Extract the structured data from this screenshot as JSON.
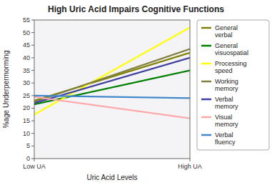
{
  "chart_data": {
    "type": "line",
    "title": "High Uric Acid Impairs Cognitive Functions",
    "x_label": "Uric Acid Levels",
    "y_label": "%age Underpermorming",
    "categories": [
      "Low UA",
      "High UA"
    ],
    "series": [
      {
        "name": "General\nverbal",
        "color": "#808000",
        "values": [
          23.0,
          42.0
        ]
      },
      {
        "name": "General\nvisuospatial",
        "color": "#008000",
        "values": [
          21.5,
          35.0
        ]
      },
      {
        "name": "Processing\nspeed",
        "color": "#ffff00",
        "values": [
          17.5,
          52.0
        ]
      },
      {
        "name": "Working\nmemory",
        "color": "#808040",
        "values": [
          22.5,
          43.5
        ]
      },
      {
        "name": "Verbal\nmemory",
        "color": "#4040a0",
        "values": [
          22.0,
          40.0
        ]
      },
      {
        "name": "Visual\nmemory",
        "color": "#ffaaaa",
        "values": [
          24.5,
          16.0
        ]
      },
      {
        "name": "Verbal\nfluency",
        "color": "#4488cc",
        "values": [
          25.0,
          24.0
        ]
      }
    ],
    "ylim": [
      0,
      55
    ],
    "yticks": [
      0,
      5,
      10,
      15,
      20,
      25,
      30,
      35,
      40,
      45,
      50,
      55
    ],
    "grid": false,
    "legend": "right"
  }
}
